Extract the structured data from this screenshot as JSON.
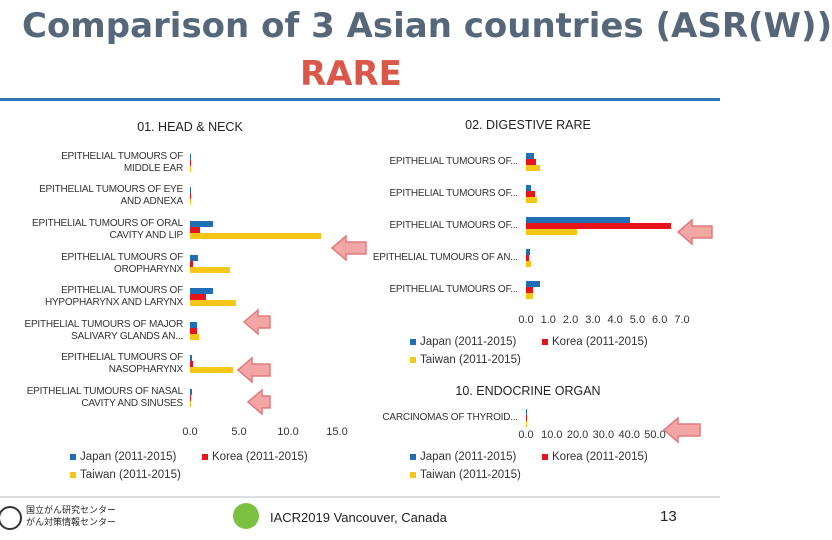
{
  "title": "Comparison of 3 Asian countries (ASR(W))",
  "title_highlight": "RARE",
  "footer": "IACR2019 Vancouver, Canada",
  "page_number": "13",
  "logo_text": [
    "国立がん研究センター",
    "がん対策情報センター"
  ],
  "chart_data": [
    {
      "type": "hbar",
      "title": "01. HEAD & NECK",
      "categories": [
        "EPITHELIAL TUMOURS OF MIDDLE EAR",
        "EPITHELIAL TUMOURS OF EYE AND ADNEXA",
        "EPITHELIAL TUMOURS OF ORAL CAVITY AND LIP",
        "EPITHELIAL TUMOURS OF OROPHARYNX",
        "EPITHELIAL TUMOURS OF HYPOPHARYNX AND LARYNX",
        "EPITHELIAL TUMOURS OF MAJOR SALIVARY GLANDS AN...",
        "EPITHELIAL TUMOURS OF NASOPHARYNX",
        "EPITHELIAL TUMOURS OF NASAL CAVITY AND SINUSES"
      ],
      "series": [
        {
          "name": "Japan (2011-2015)",
          "color": "#1f6fb5",
          "values": [
            0.02,
            0.05,
            2.3,
            0.8,
            2.3,
            0.7,
            0.2,
            0.2
          ]
        },
        {
          "name": "Korea (2011-2015)",
          "color": "#e8141c",
          "values": [
            0.01,
            0.03,
            1.0,
            0.3,
            1.6,
            0.7,
            0.3,
            0.1
          ]
        },
        {
          "name": "Taiwan (2011-2015)",
          "color": "#f5c518",
          "values": [
            0.03,
            0.05,
            13.4,
            4.1,
            4.7,
            0.9,
            4.4,
            0.1
          ]
        }
      ],
      "xlim": [
        0,
        15
      ],
      "xticks": [
        {
          "value": 0,
          "label": "0.0"
        },
        {
          "value": 5,
          "label": "5.0"
        },
        {
          "value": 10,
          "label": "10.0"
        },
        {
          "value": 15,
          "label": "15.0"
        }
      ]
    },
    {
      "type": "hbar",
      "title": "02. DIGESTIVE RARE",
      "categories": [
        "EPITHELIAL TUMOURS OF...",
        "EPITHELIAL TUMOURS OF...",
        "EPITHELIAL TUMOURS OF...",
        "EPITHELIAL TUMOURS OF AN...",
        "EPITHELIAL TUMOURS OF..."
      ],
      "series": [
        {
          "name": "Japan (2011-2015)",
          "color": "#1f6fb5",
          "values": [
            0.36,
            0.22,
            4.66,
            0.18,
            0.63
          ]
        },
        {
          "name": "Korea (2011-2015)",
          "color": "#e8141c",
          "values": [
            0.45,
            0.4,
            6.5,
            0.13,
            0.31
          ]
        },
        {
          "name": "Taiwan (2011-2015)",
          "color": "#f5c518",
          "values": [
            0.63,
            0.5,
            2.29,
            0.22,
            0.31
          ]
        }
      ],
      "xlim": [
        0,
        7
      ],
      "xticks": [
        {
          "value": 0,
          "label": "0.0"
        },
        {
          "value": 1,
          "label": "1.0"
        },
        {
          "value": 2,
          "label": "2.0"
        },
        {
          "value": 3,
          "label": "3.0"
        },
        {
          "value": 4,
          "label": "4.0"
        },
        {
          "value": 5,
          "label": "5.0"
        },
        {
          "value": 6,
          "label": "6.0"
        },
        {
          "value": 7,
          "label": "7.0"
        }
      ]
    },
    {
      "type": "hbar",
      "title": "10. ENDOCRINE ORGAN",
      "categories": [
        "CARCINOMAS OF THYROID..."
      ],
      "series": [
        {
          "name": "Japan (2011-2015)",
          "color": "#1f6fb5",
          "values": [
            0.2
          ]
        },
        {
          "name": "Korea (2011-2015)",
          "color": "#e8141c",
          "values": [
            0.3
          ]
        },
        {
          "name": "Taiwan (2011-2015)",
          "color": "#f5c518",
          "values": [
            0.2
          ]
        }
      ],
      "xlim": [
        0,
        50
      ],
      "xticks": [
        {
          "value": 0,
          "label": "0.0"
        },
        {
          "value": 10,
          "label": "10.0"
        },
        {
          "value": 20,
          "label": "20.0"
        },
        {
          "value": 30,
          "label": "30.0"
        },
        {
          "value": 40,
          "label": "40.0"
        },
        {
          "value": 50,
          "label": "50.0"
        }
      ]
    }
  ]
}
